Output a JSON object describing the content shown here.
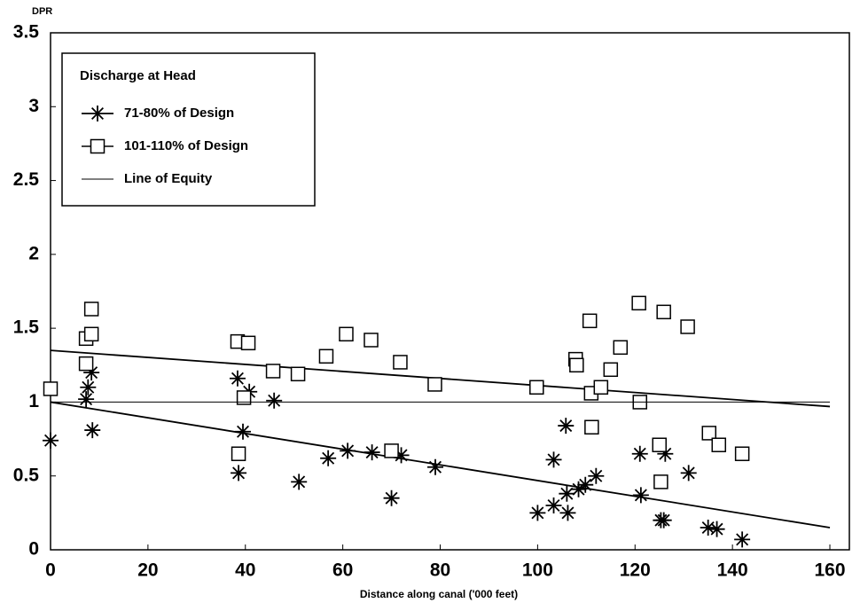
{
  "chart_data": {
    "type": "scatter",
    "y_label": "DPR",
    "x_label": "Distance along canal ('000 feet)",
    "legend_title": "Discharge at Head",
    "legend_position": "upper left",
    "xlim": [
      0,
      164
    ],
    "xticks": [
      0,
      20,
      40,
      60,
      80,
      100,
      120,
      140,
      160
    ],
    "ylim": [
      0,
      3.5
    ],
    "yticks": [
      0,
      0.5,
      1,
      1.5,
      2,
      2.5,
      3,
      3.5
    ],
    "series": [
      {
        "name": "71-80% of Design",
        "marker": "asterisk",
        "color": "#000000",
        "x": [
          0,
          7.3,
          7.7,
          8.4,
          8.6,
          38.4,
          38.6,
          39.5,
          40.8,
          45.9,
          51,
          57,
          61,
          66,
          70,
          72,
          79,
          100,
          103.3,
          103.3,
          105.8,
          106,
          106.2,
          108.4,
          109.8,
          112,
          121,
          121.2,
          125.3,
          125.9,
          126.2,
          131,
          135,
          136.8,
          142
        ],
        "values": [
          0.74,
          1.02,
          1.1,
          1.2,
          0.81,
          1.16,
          0.52,
          0.8,
          1.07,
          1.01,
          0.46,
          0.62,
          0.67,
          0.66,
          0.35,
          0.64,
          0.56,
          0.25,
          0.61,
          0.3,
          0.84,
          0.38,
          0.25,
          0.41,
          0.44,
          0.5,
          0.65,
          0.37,
          0.2,
          0.2,
          0.65,
          0.52,
          0.15,
          0.14,
          0.07
        ]
      },
      {
        "name": "101-110% of Design",
        "marker": "square",
        "color": "#000000",
        "x": [
          0,
          7.3,
          7.3,
          8.4,
          8.4,
          38.4,
          38.6,
          39.7,
          40.6,
          45.7,
          50.8,
          56.6,
          60.7,
          65.8,
          70,
          71.8,
          78.9,
          99.8,
          107.8,
          108,
          110.7,
          111,
          111.1,
          113,
          115,
          117,
          120.8,
          121,
          125,
          125.3,
          125.9,
          130.8,
          135.2,
          137.2,
          142
        ],
        "values": [
          1.09,
          1.43,
          1.26,
          1.63,
          1.46,
          1.41,
          0.65,
          1.03,
          1.4,
          1.21,
          1.19,
          1.31,
          1.46,
          1.42,
          0.67,
          1.27,
          1.12,
          1.1,
          1.29,
          1.25,
          1.55,
          1.06,
          0.83,
          1.1,
          1.22,
          1.37,
          1.67,
          1,
          0.71,
          0.46,
          1.61,
          1.51,
          0.79,
          0.71,
          0.65
        ]
      },
      {
        "name": "Line of Equity",
        "marker": "line",
        "color": "#000000",
        "x": [
          0,
          160
        ],
        "values": [
          1,
          1
        ]
      }
    ],
    "trend_lines": [
      {
        "x": [
          0,
          160
        ],
        "values": [
          1.0,
          0.15
        ]
      },
      {
        "x": [
          0,
          160
        ],
        "values": [
          1.35,
          0.97
        ]
      }
    ]
  }
}
